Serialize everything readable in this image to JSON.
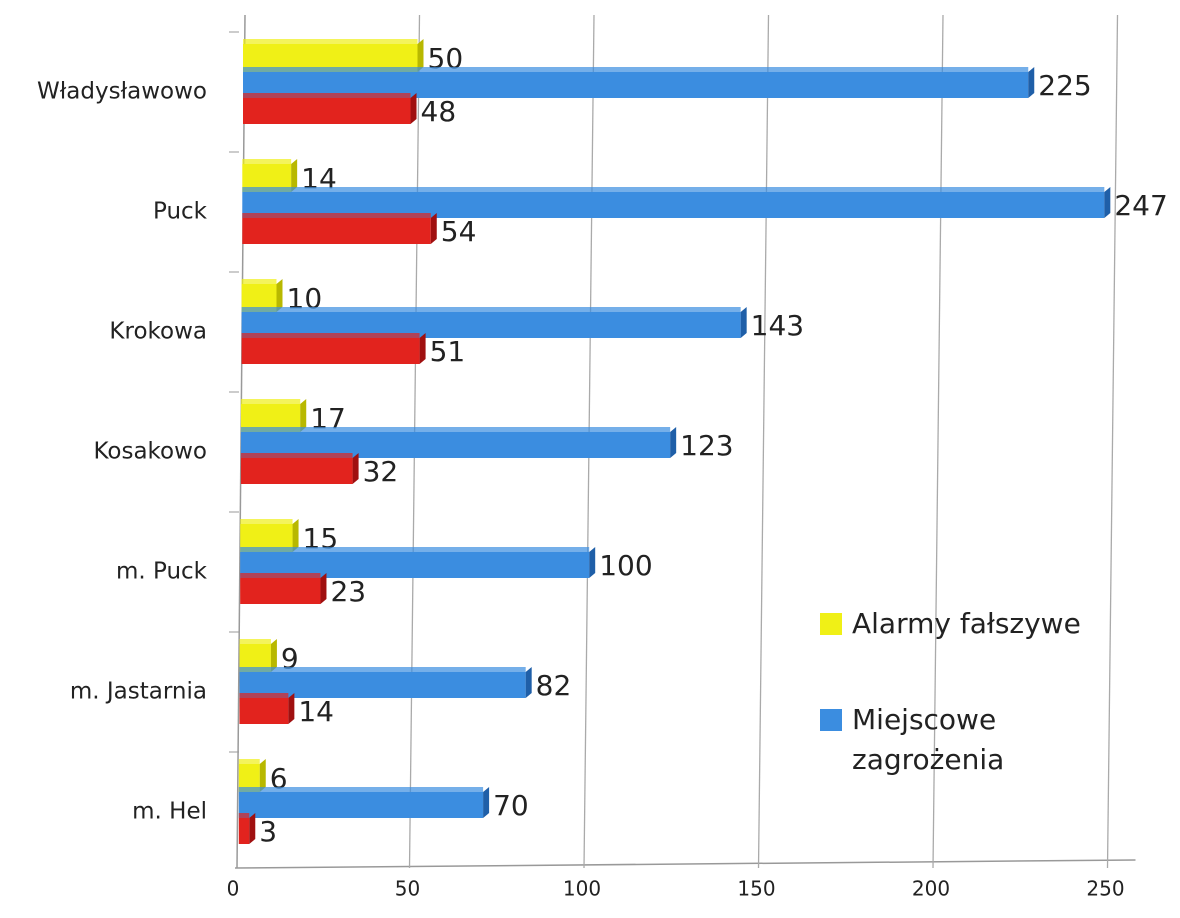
{
  "chart_data": {
    "type": "bar",
    "orientation": "horizontal",
    "categories": [
      "Władysławowo",
      "Puck",
      "Krokowa",
      "Kosakowo",
      "m. Puck",
      "m. Jastarnia",
      "m. Hel"
    ],
    "series": [
      {
        "name": "Alarmy fałszywe",
        "color": "#f0f016",
        "values": [
          50,
          14,
          10,
          17,
          15,
          9,
          6
        ]
      },
      {
        "name": "Miejscowe zagrożenia",
        "color": "#3b8de0",
        "values": [
          225,
          247,
          143,
          123,
          100,
          82,
          70
        ]
      },
      {
        "color": "#e2231e",
        "values": [
          48,
          54,
          51,
          32,
          23,
          14,
          3
        ]
      }
    ],
    "xlim": [
      0,
      250
    ],
    "xticks": [
      0,
      50,
      100,
      150,
      200,
      250
    ],
    "grid": true
  }
}
